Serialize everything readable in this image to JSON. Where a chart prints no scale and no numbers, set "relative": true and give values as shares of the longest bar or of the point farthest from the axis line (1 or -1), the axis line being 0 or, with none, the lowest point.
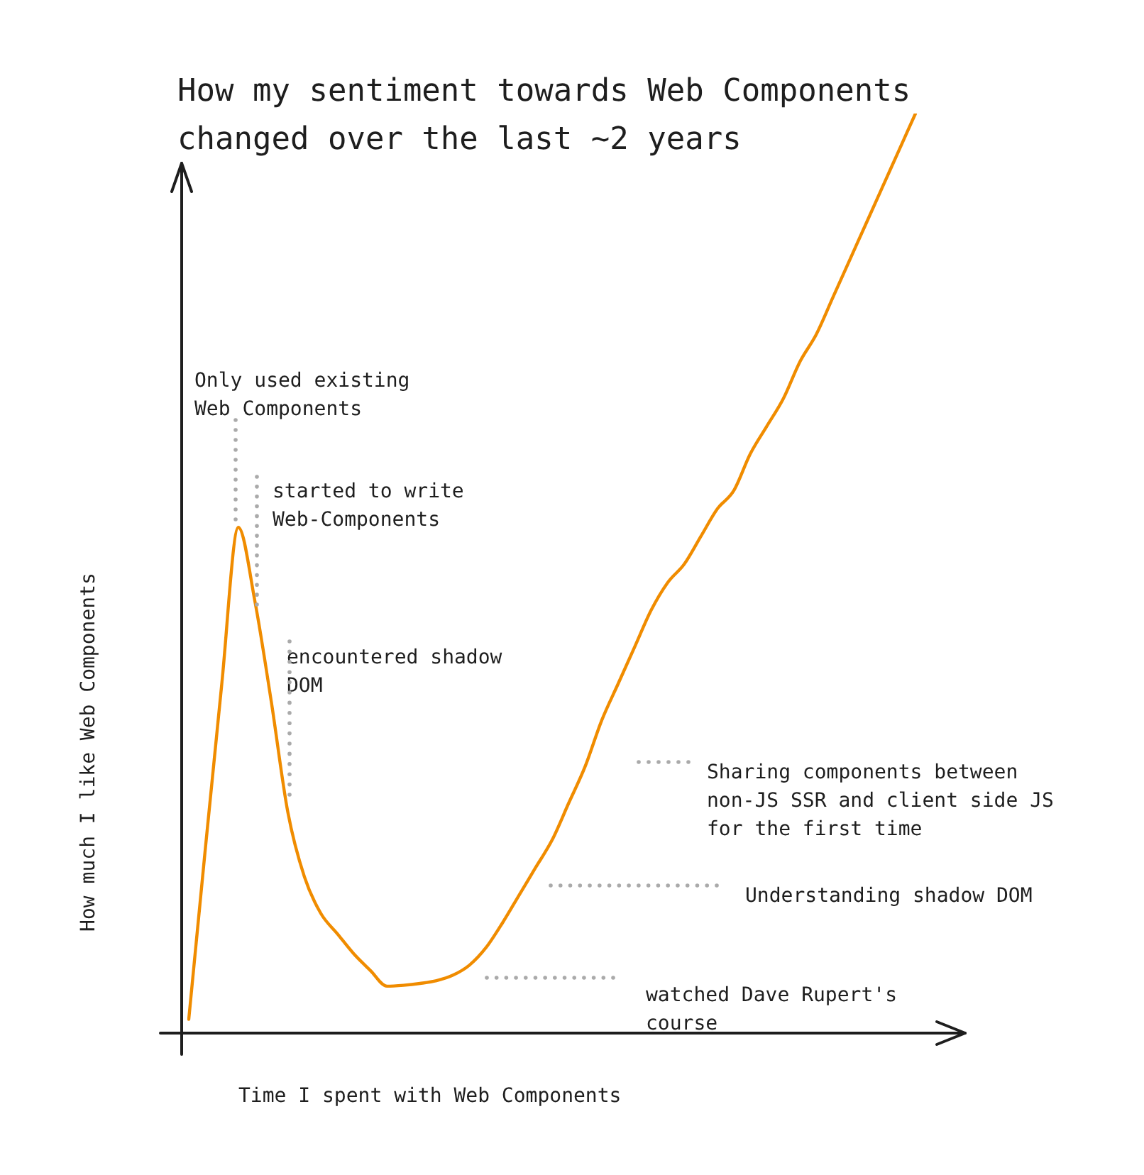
{
  "chart_data": {
    "type": "line",
    "title": "How my sentiment towards Web Components changed over the last ~2 years",
    "xlabel": "Time I spent with Web Components",
    "ylabel": "How much I like Web Components",
    "relative": true,
    "legend": false,
    "marker": "none",
    "line_style": "solid",
    "categories": [
      null,
      null,
      null,
      null,
      null,
      null,
      null,
      null,
      null,
      null,
      null,
      null,
      null,
      null,
      null,
      null,
      null,
      null,
      null,
      null,
      null,
      null,
      null,
      null,
      null,
      null,
      null,
      null,
      null,
      null,
      null,
      null,
      null,
      null,
      null,
      null,
      null,
      null,
      null,
      null,
      null,
      null,
      null,
      null,
      null
    ],
    "series": [
      {
        "color": "#f08c00",
        "values": [
          0.015,
          0.2,
          0.38,
          0.55,
          0.47,
          0.36,
          0.24,
          0.17,
          0.13,
          0.108,
          0.086,
          0.068,
          0.051,
          0.052,
          0.054,
          0.057,
          0.063,
          0.074,
          0.093,
          0.12,
          0.15,
          0.18,
          0.21,
          0.25,
          0.29,
          0.34,
          0.38,
          0.42,
          0.46,
          0.49,
          0.51,
          0.54,
          0.57,
          0.59,
          0.63,
          0.66,
          0.69,
          0.73,
          0.76,
          0.8,
          0.84,
          0.88,
          0.92,
          0.96,
          1
        ]
      }
    ],
    "annotations": [
      "Only used existing Web Components",
      "started to write Web-Components",
      "encountered shadow DOM",
      "Sharing components between non-JS SSR and client side JS for the first time",
      "Understanding shadow DOM",
      "watched Dave Rupert's course"
    ]
  }
}
